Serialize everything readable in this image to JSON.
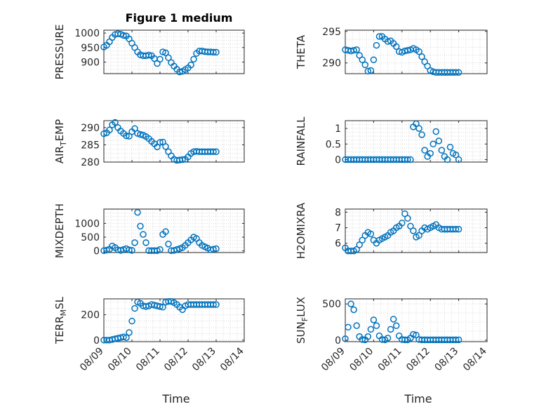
{
  "figure": {
    "title": "Figure 1 medium",
    "xlabel": "Time"
  },
  "chart_data": [
    {
      "type": "scatter",
      "ylabel": "PRESSURE",
      "sub": "",
      "ylim": [
        860,
        1010
      ],
      "yticks": [
        900,
        950,
        1000
      ],
      "x": [
        0.0,
        0.1,
        0.2,
        0.3,
        0.4,
        0.5,
        0.6,
        0.7,
        0.8,
        0.9,
        1.0,
        1.1,
        1.2,
        1.3,
        1.4,
        1.5,
        1.6,
        1.7,
        1.8,
        1.9,
        2.0,
        2.1,
        2.2,
        2.3,
        2.4,
        2.5,
        2.6,
        2.7,
        2.8,
        2.9,
        3.0,
        3.1,
        3.2,
        3.3,
        3.4,
        3.5,
        3.6,
        3.7,
        3.8,
        3.9,
        4.0
      ],
      "y": [
        952,
        958,
        970,
        985,
        995,
        998,
        996,
        992,
        990,
        980,
        965,
        950,
        935,
        925,
        922,
        922,
        924,
        922,
        912,
        895,
        910,
        935,
        932,
        915,
        898,
        886,
        875,
        866,
        868,
        874,
        880,
        890,
        910,
        930,
        938,
        938,
        936,
        935,
        935,
        934,
        934
      ]
    },
    {
      "type": "scatter",
      "ylabel": "THETA",
      "sub": "",
      "ylim": [
        288.3,
        295.2
      ],
      "yticks": [
        290,
        295
      ],
      "x": [
        0.0,
        0.1,
        0.2,
        0.3,
        0.4,
        0.5,
        0.6,
        0.7,
        0.8,
        0.9,
        1.0,
        1.1,
        1.2,
        1.3,
        1.4,
        1.5,
        1.6,
        1.7,
        1.8,
        1.9,
        2.0,
        2.1,
        2.2,
        2.3,
        2.4,
        2.5,
        2.6,
        2.7,
        2.8,
        2.9,
        3.0,
        3.1,
        3.2,
        3.3,
        3.4,
        3.5,
        3.6,
        3.7,
        3.8,
        3.9,
        4.0
      ],
      "y": [
        292.1,
        292.0,
        291.9,
        292.0,
        292.1,
        291.2,
        290.5,
        289.7,
        288.7,
        288.8,
        290.5,
        292.8,
        294.2,
        294.2,
        293.8,
        293.4,
        293.5,
        293.1,
        292.6,
        291.8,
        291.7,
        291.9,
        292.0,
        292.1,
        292.3,
        292.1,
        291.8,
        291.0,
        290.2,
        289.5,
        288.8,
        288.6,
        288.5,
        288.5,
        288.5,
        288.5,
        288.5,
        288.5,
        288.5,
        288.5,
        288.5
      ]
    },
    {
      "type": "scatter",
      "ylabel": "AIR",
      "sub": "T",
      "ylabel_suffix": "EMP",
      "ylim": [
        280,
        292
      ],
      "yticks": [
        280,
        285,
        290
      ],
      "x": [
        0.0,
        0.1,
        0.2,
        0.3,
        0.4,
        0.5,
        0.6,
        0.7,
        0.8,
        0.9,
        1.0,
        1.1,
        1.2,
        1.3,
        1.4,
        1.5,
        1.6,
        1.7,
        1.8,
        1.9,
        2.0,
        2.1,
        2.2,
        2.3,
        2.4,
        2.5,
        2.6,
        2.7,
        2.8,
        2.9,
        3.0,
        3.1,
        3.2,
        3.3,
        3.4,
        3.5,
        3.6,
        3.7,
        3.8,
        3.9,
        4.0
      ],
      "y": [
        288.2,
        288.5,
        289.3,
        290.8,
        291.5,
        290.0,
        289.0,
        288.3,
        287.6,
        287.5,
        288.8,
        289.7,
        288.3,
        288.0,
        287.8,
        287.4,
        286.8,
        286.0,
        285.3,
        284.4,
        285.7,
        285.8,
        284.5,
        283.0,
        281.8,
        280.8,
        280.5,
        280.6,
        280.7,
        280.8,
        281.5,
        282.5,
        283.0,
        283.1,
        283.0,
        283.0,
        283.0,
        283.0,
        283.0,
        283.0,
        283.0
      ]
    },
    {
      "type": "scatter",
      "ylabel": "RAINFALL",
      "sub": "",
      "ylim": [
        -0.08,
        1.25
      ],
      "yticks": [
        0,
        0.5,
        1
      ],
      "x": [
        0.0,
        0.1,
        0.2,
        0.3,
        0.4,
        0.5,
        0.6,
        0.7,
        0.8,
        0.9,
        1.0,
        1.1,
        1.2,
        1.3,
        1.4,
        1.5,
        1.6,
        1.7,
        1.8,
        1.9,
        2.0,
        2.1,
        2.2,
        2.3,
        2.4,
        2.5,
        2.6,
        2.7,
        2.8,
        2.9,
        3.0,
        3.1,
        3.2,
        3.3,
        3.4,
        3.5,
        3.6,
        3.7,
        3.8,
        3.9,
        4.0
      ],
      "y": [
        0,
        0,
        0,
        0,
        0,
        0,
        0,
        0,
        0,
        0,
        0,
        0,
        0,
        0,
        0,
        0,
        0,
        0,
        0,
        0,
        0,
        0,
        0,
        0,
        1.05,
        1.15,
        1.0,
        0.8,
        0.3,
        0.1,
        0.2,
        0.5,
        0.9,
        0.6,
        0.3,
        0.1,
        0.0,
        0.4,
        0.2,
        0.15,
        0.0
      ]
    },
    {
      "type": "scatter",
      "ylabel": "MIXDEPTH",
      "sub": "",
      "ylim": [
        -60,
        1520
      ],
      "yticks": [
        0,
        500,
        1000
      ],
      "x": [
        0.0,
        0.1,
        0.2,
        0.3,
        0.4,
        0.5,
        0.6,
        0.7,
        0.8,
        0.9,
        1.0,
        1.1,
        1.2,
        1.3,
        1.4,
        1.5,
        1.6,
        1.7,
        1.8,
        1.9,
        2.0,
        2.1,
        2.2,
        2.3,
        2.4,
        2.5,
        2.6,
        2.7,
        2.8,
        2.9,
        3.0,
        3.1,
        3.2,
        3.3,
        3.4,
        3.5,
        3.6,
        3.7,
        3.8,
        3.9,
        4.0
      ],
      "y": [
        10,
        30,
        60,
        180,
        120,
        40,
        20,
        50,
        80,
        40,
        20,
        300,
        1400,
        900,
        600,
        300,
        10,
        10,
        10,
        10,
        50,
        600,
        700,
        250,
        10,
        20,
        50,
        80,
        120,
        200,
        300,
        400,
        500,
        450,
        300,
        200,
        150,
        100,
        40,
        60,
        80
      ]
    },
    {
      "type": "scatter",
      "ylabel": "H2OMIXRA",
      "sub": "",
      "ylim": [
        5.4,
        8.2
      ],
      "yticks": [
        6,
        7,
        8
      ],
      "x": [
        0.0,
        0.1,
        0.2,
        0.3,
        0.4,
        0.5,
        0.6,
        0.7,
        0.8,
        0.9,
        1.0,
        1.1,
        1.2,
        1.3,
        1.4,
        1.5,
        1.6,
        1.7,
        1.8,
        1.9,
        2.0,
        2.1,
        2.2,
        2.3,
        2.4,
        2.5,
        2.6,
        2.7,
        2.8,
        2.9,
        3.0,
        3.1,
        3.2,
        3.3,
        3.4,
        3.5,
        3.6,
        3.7,
        3.8,
        3.9,
        4.0
      ],
      "y": [
        5.7,
        5.5,
        5.5,
        5.5,
        5.6,
        5.9,
        6.2,
        6.5,
        6.7,
        6.6,
        6.2,
        6.0,
        6.2,
        6.3,
        6.4,
        6.5,
        6.7,
        6.8,
        7.0,
        7.1,
        7.3,
        7.9,
        7.6,
        7.1,
        6.8,
        6.4,
        6.5,
        6.8,
        7.0,
        6.9,
        7.0,
        7.1,
        7.2,
        7.0,
        6.9,
        6.9,
        6.9,
        6.9,
        6.9,
        6.9,
        6.9
      ]
    },
    {
      "type": "scatter",
      "ylabel": "TERR",
      "sub": "M",
      "ylabel_suffix": "SL",
      "ylim": [
        -12,
        325
      ],
      "yticks": [
        0,
        200
      ],
      "x": [
        0.0,
        0.1,
        0.2,
        0.3,
        0.4,
        0.5,
        0.6,
        0.7,
        0.8,
        0.9,
        1.0,
        1.1,
        1.2,
        1.3,
        1.4,
        1.5,
        1.6,
        1.7,
        1.8,
        1.9,
        2.0,
        2.1,
        2.2,
        2.3,
        2.4,
        2.5,
        2.6,
        2.7,
        2.8,
        2.9,
        3.0,
        3.1,
        3.2,
        3.3,
        3.4,
        3.5,
        3.6,
        3.7,
        3.8,
        3.9,
        4.0
      ],
      "y": [
        0,
        0,
        0,
        5,
        10,
        15,
        20,
        25,
        20,
        60,
        150,
        250,
        300,
        290,
        270,
        265,
        270,
        280,
        275,
        270,
        265,
        260,
        300,
        305,
        305,
        295,
        280,
        260,
        240,
        270,
        280,
        280,
        280,
        280,
        280,
        280,
        280,
        280,
        280,
        280,
        280
      ]
    },
    {
      "type": "scatter",
      "ylabel": "SUN",
      "sub": "F",
      "ylabel_suffix": "LUX",
      "ylim": [
        -20,
        570
      ],
      "yticks": [
        0,
        500
      ],
      "x": [
        0.0,
        0.1,
        0.2,
        0.3,
        0.4,
        0.5,
        0.6,
        0.7,
        0.8,
        0.9,
        1.0,
        1.1,
        1.2,
        1.3,
        1.4,
        1.5,
        1.6,
        1.7,
        1.8,
        1.9,
        2.0,
        2.1,
        2.2,
        2.3,
        2.4,
        2.5,
        2.6,
        2.7,
        2.8,
        2.9,
        3.0,
        3.1,
        3.2,
        3.3,
        3.4,
        3.5,
        3.6,
        3.7,
        3.8,
        3.9,
        4.0
      ],
      "y": [
        20,
        180,
        500,
        420,
        200,
        50,
        10,
        5,
        50,
        150,
        280,
        200,
        60,
        10,
        5,
        30,
        150,
        290,
        200,
        60,
        10,
        5,
        5,
        30,
        80,
        70,
        10,
        5,
        5,
        5,
        5,
        5,
        5,
        5,
        5,
        5,
        5,
        5,
        5,
        5,
        5
      ]
    }
  ],
  "xaxis": {
    "xlim": [
      0,
      5
    ],
    "ticks": [
      0,
      1,
      2,
      3,
      4,
      5
    ],
    "tick_labels": [
      "08/09",
      "08/10",
      "08/11",
      "08/12",
      "08/13",
      "08/14"
    ]
  },
  "colors": {
    "marker": "#0072bd"
  }
}
